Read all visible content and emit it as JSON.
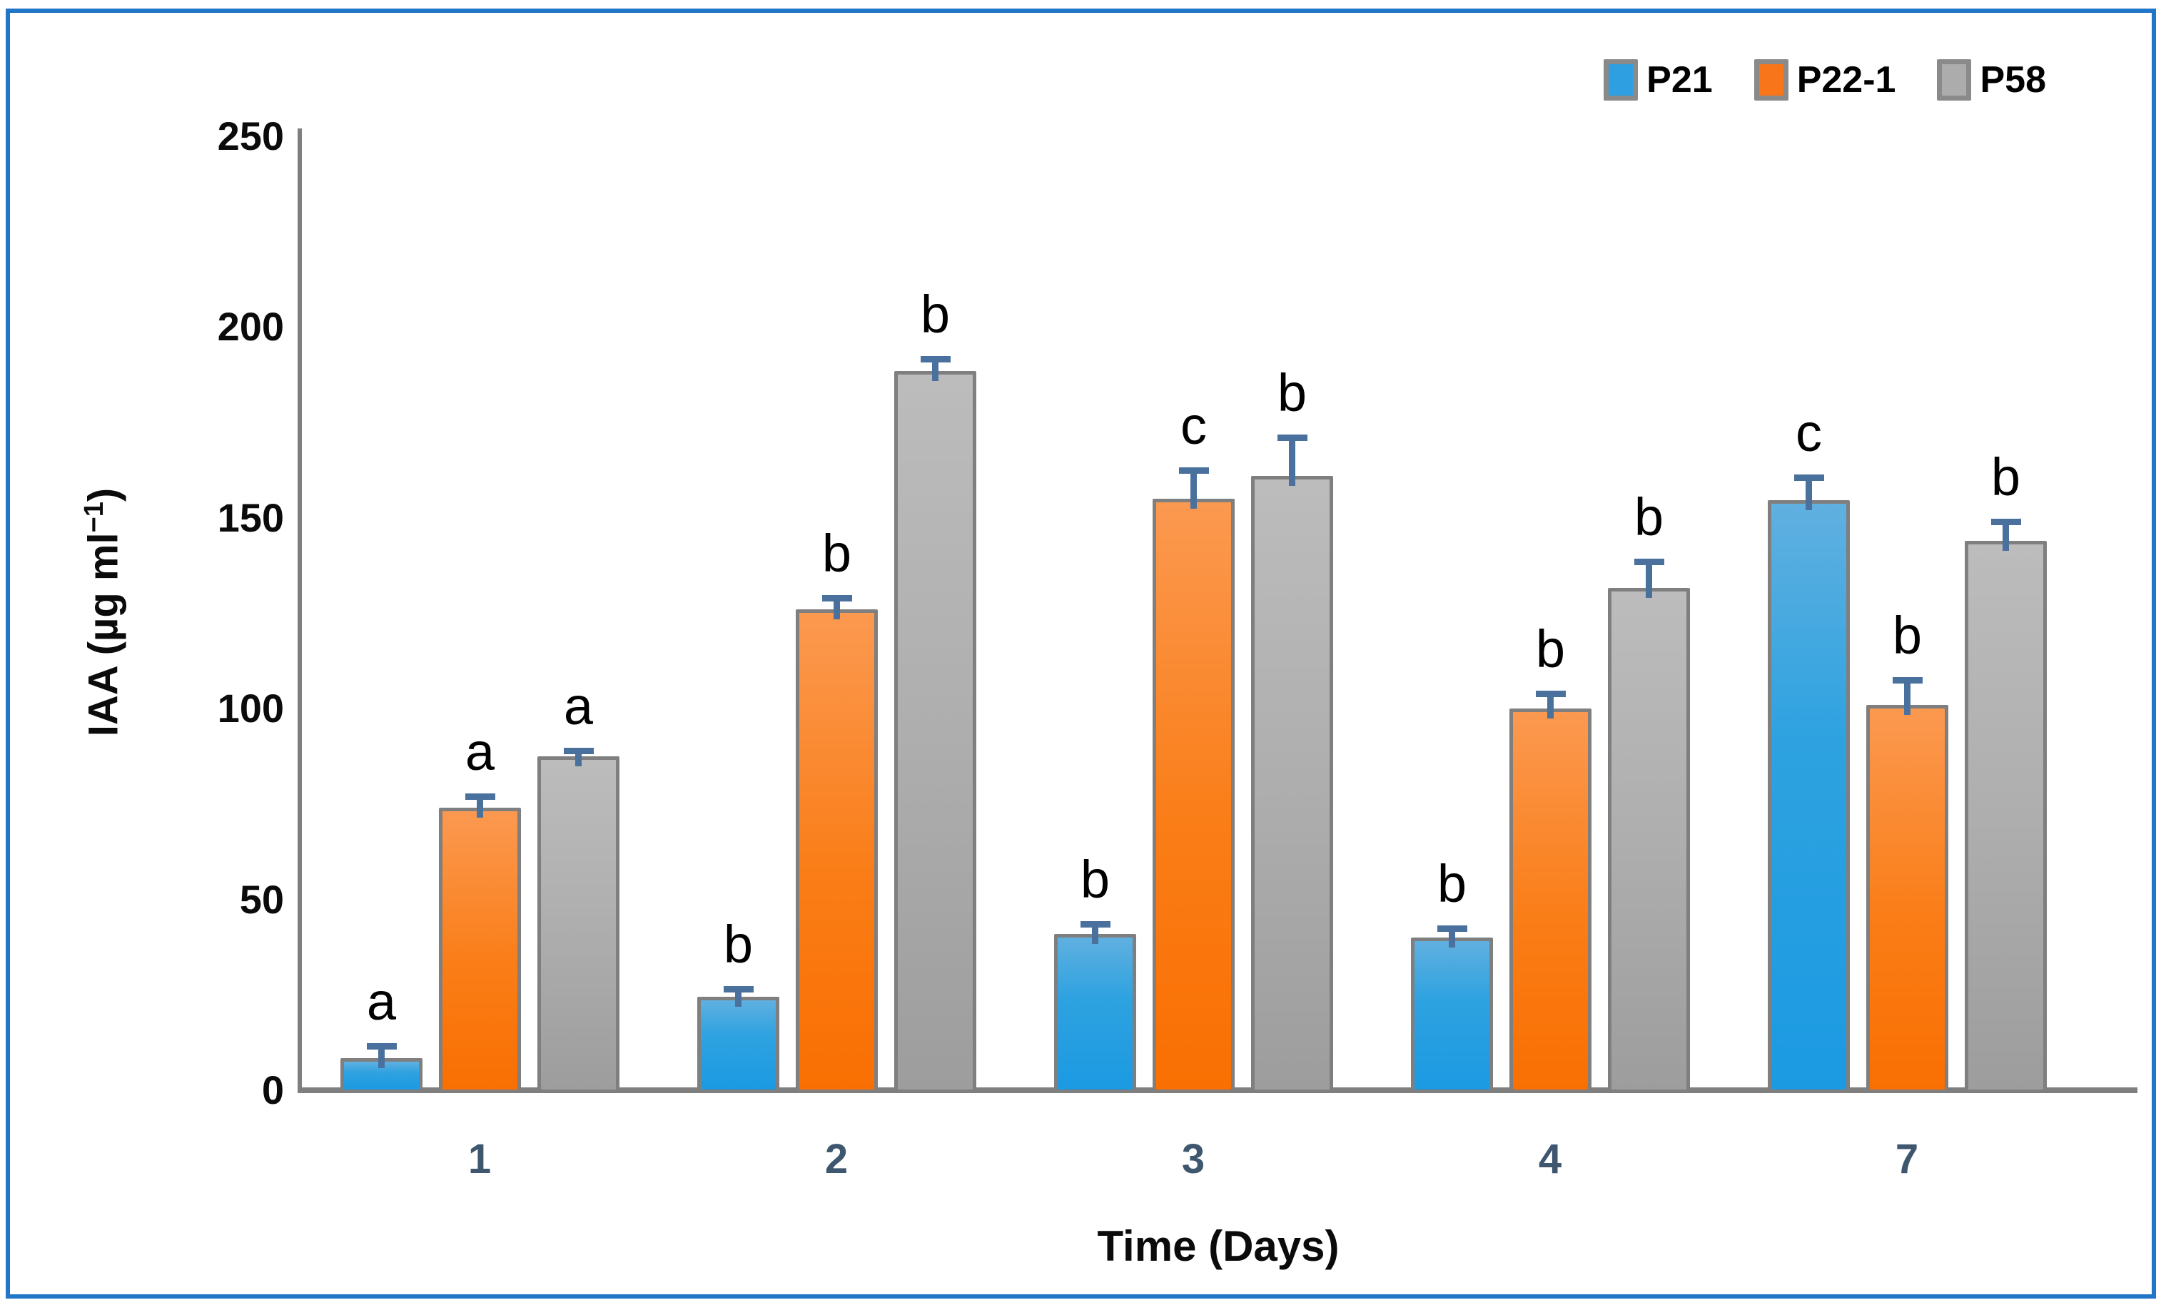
{
  "figure": {
    "border_color": "#2176c7",
    "axis_color": "#7f7f7f",
    "error_bar_color": "#4a719e",
    "x_tick_color": "#3e566e"
  },
  "y_axis": {
    "title_prefix": "IAA (µg ml",
    "title_sup": "−1",
    "title_suffix": ")"
  },
  "x_axis": {
    "title": "Time (Days)"
  },
  "legend": {
    "position": "top-right",
    "items": [
      "P21",
      "P22-1",
      "P58"
    ]
  },
  "chart_data": {
    "type": "bar",
    "title": "",
    "xlabel": "Time (Days)",
    "ylabel": "IAA (µg ml−1)",
    "categories": [
      "1",
      "2",
      "3",
      "4",
      "7"
    ],
    "ylim": [
      0,
      250
    ],
    "y_ticks": [
      0,
      50,
      100,
      150,
      200,
      250
    ],
    "grid": false,
    "legend_position": "top-right",
    "series": [
      {
        "name": "P21",
        "color": "#2E9FE0",
        "values": [
          8.5,
          24.5,
          41,
          40,
          154.5
        ],
        "errors": [
          3,
          2,
          2.5,
          2.5,
          6
        ],
        "letters": [
          "a",
          "b",
          "b",
          "b",
          "c"
        ]
      },
      {
        "name": "P22-1",
        "color": "#F9751A",
        "values": [
          74,
          126,
          155,
          100,
          101
        ],
        "errors": [
          3,
          3,
          7.5,
          4,
          6.5
        ],
        "letters": [
          "a",
          "b",
          "c",
          "b",
          "b"
        ]
      },
      {
        "name": "P58",
        "color": "#ACACAC",
        "values": [
          87.5,
          188.5,
          161,
          131.5,
          144
        ],
        "errors": [
          1.5,
          3,
          10,
          7,
          5
        ],
        "letters": [
          "a",
          "b",
          "b",
          "b",
          "b"
        ]
      }
    ]
  }
}
